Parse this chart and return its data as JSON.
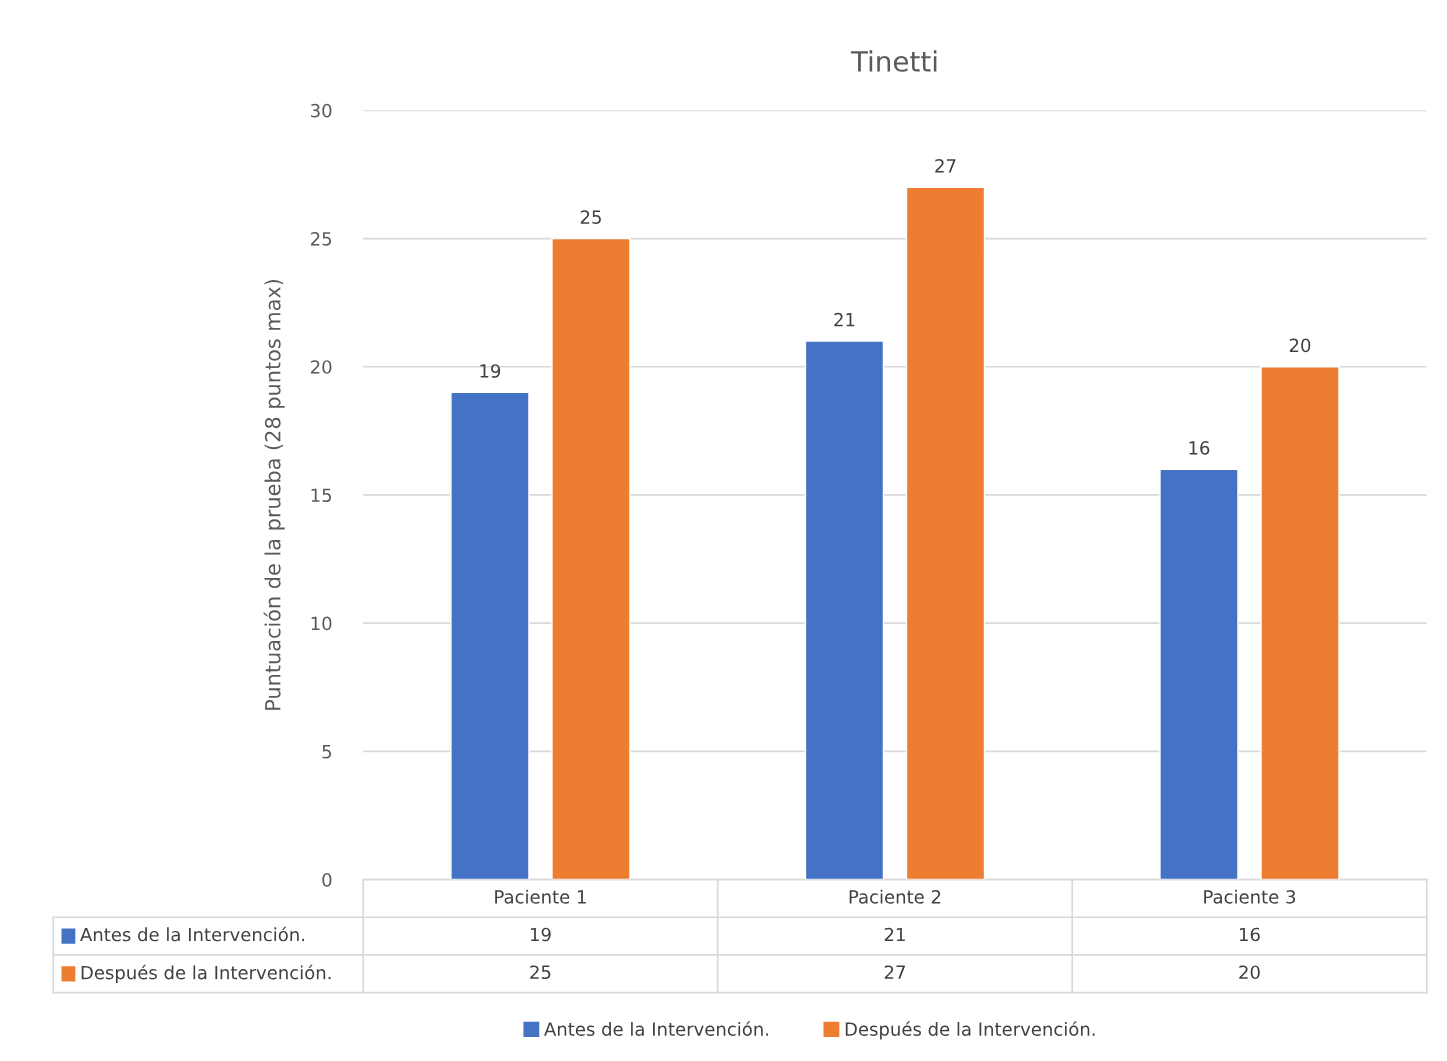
{
  "chart_data": {
    "type": "bar",
    "title": "Tinetti",
    "ylabel": "Puntuación de la prueba (28 puntos max)",
    "categories": [
      "Paciente 1",
      "Paciente 2",
      "Paciente 3"
    ],
    "series": [
      {
        "name": "Antes de la Intervención.",
        "color": "#4472c4",
        "values": [
          19,
          21,
          16
        ],
        "value_labels": [
          "19",
          "21",
          "16"
        ]
      },
      {
        "name": "Después de la Intervención.",
        "color": "#ed7d31",
        "values": [
          25,
          27,
          20
        ],
        "value_labels": [
          "25",
          "27",
          "20"
        ]
      }
    ],
    "ylim": [
      0,
      30
    ],
    "yticks": [
      0,
      5,
      10,
      15,
      20,
      25,
      30
    ],
    "grid": "y",
    "legend": "bottom",
    "annotations": [
      "19",
      "21",
      "16",
      "25",
      "27",
      "20"
    ]
  }
}
